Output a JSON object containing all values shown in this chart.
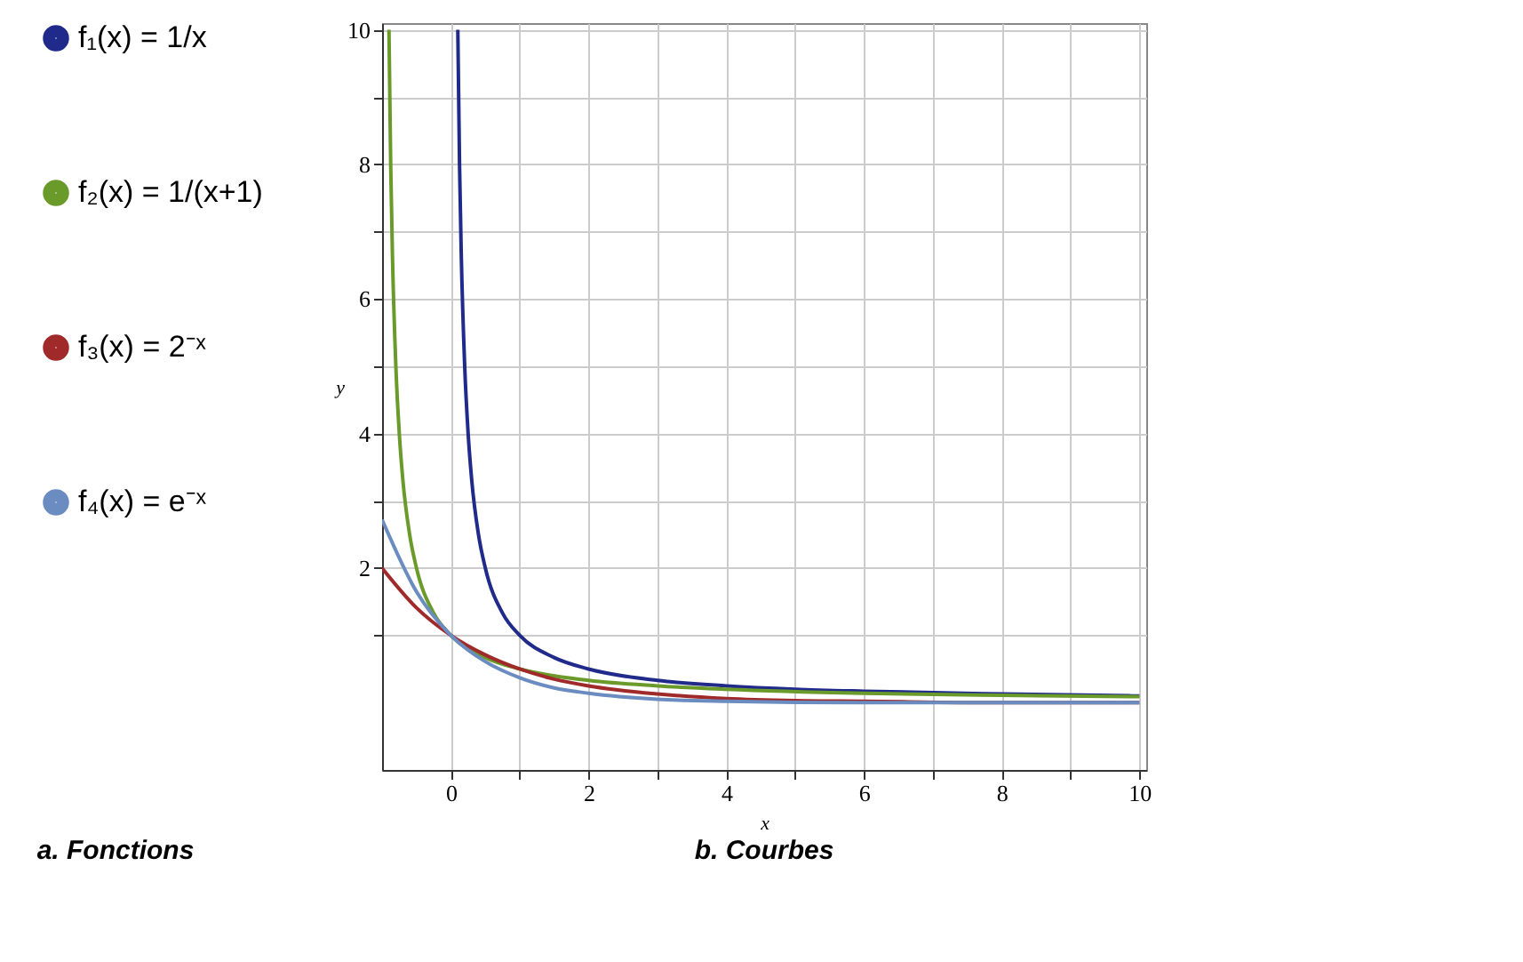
{
  "chart_data": {
    "type": "line",
    "xlabel": "x",
    "ylabel": "y",
    "xlim": [
      -1,
      10.1
    ],
    "ylim": [
      -1,
      10.1
    ],
    "xticks": [
      0,
      {
        "value": 1,
        "label": null
      },
      2,
      {
        "value": 3,
        "label": null
      },
      4,
      {
        "value": 5,
        "label": null
      },
      6,
      {
        "value": 7,
        "label": null
      },
      8,
      {
        "value": 9,
        "label": null
      },
      10
    ],
    "yticks": [
      {
        "value": 1,
        "label": null
      },
      2,
      {
        "value": 3,
        "label": null
      },
      4,
      {
        "value": 5,
        "label": null
      },
      6,
      {
        "value": 7,
        "label": null
      },
      8,
      {
        "value": 9,
        "label": null
      },
      10
    ],
    "grid": true,
    "legend": "left",
    "marker": "none",
    "line_style": "solid",
    "annotations": [
      "a. Fonctions",
      "b. Courbes"
    ],
    "series": [
      {
        "name": "f₁(x) = 1/x",
        "color": "#1f2a8a",
        "x": [
          0.1,
          0.125,
          0.15,
          0.2,
          0.25,
          0.3,
          0.4,
          0.5,
          0.75,
          1,
          1.5,
          2,
          3,
          4,
          5,
          6,
          8,
          10
        ],
        "values": [
          10,
          8,
          6.67,
          5,
          4,
          3.33,
          2.5,
          2,
          1.33,
          1,
          0.67,
          0.5,
          0.33,
          0.25,
          0.2,
          0.17,
          0.13,
          0.1
        ]
      },
      {
        "name": "f₂(x) = 1/(x+1)",
        "color": "#6a9a2a",
        "x": [
          -0.9,
          -0.875,
          -0.85,
          -0.8,
          -0.75,
          -0.7,
          -0.6,
          -0.5,
          -0.25,
          0,
          0.5,
          1,
          2,
          3,
          4,
          6,
          8,
          10
        ],
        "values": [
          10,
          8,
          6.67,
          5,
          4,
          3.33,
          2.5,
          2,
          1.33,
          1,
          0.67,
          0.5,
          0.33,
          0.25,
          0.2,
          0.14,
          0.11,
          0.09
        ]
      },
      {
        "name": "f₃(x) = 2⁻ˣ",
        "color": "#a02a2a",
        "x": [
          -1,
          -0.5,
          0,
          0.5,
          1,
          1.5,
          2,
          3,
          4,
          5,
          6,
          8,
          10
        ],
        "values": [
          2,
          1.41,
          1,
          0.71,
          0.5,
          0.35,
          0.25,
          0.13,
          0.06,
          0.03,
          0.02,
          0,
          0
        ]
      },
      {
        "name": "f₄(x) = e⁻ˣ",
        "color": "#6a8cc0",
        "x": [
          -1,
          -0.5,
          0,
          0.5,
          1,
          1.5,
          2,
          3,
          4,
          6,
          10
        ],
        "values": [
          2.72,
          1.65,
          1,
          0.61,
          0.37,
          0.22,
          0.14,
          0.05,
          0.02,
          0,
          0
        ]
      }
    ]
  }
}
